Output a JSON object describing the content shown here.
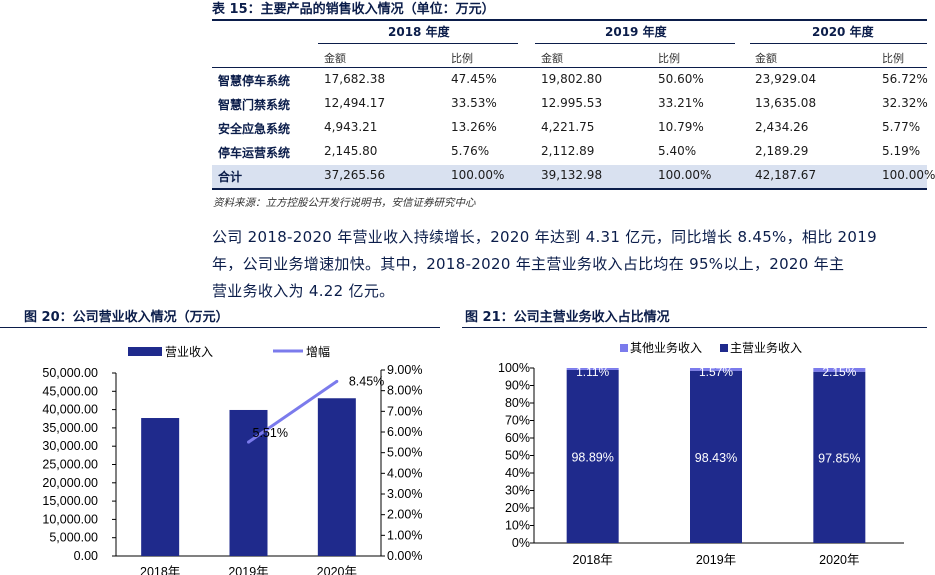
{
  "table": {
    "title": "表 15：主要产品的销售收入情况（单位：万元）",
    "years": [
      "2018 年度",
      "2019 年度",
      "2020 年度"
    ],
    "sub_amount": "金额",
    "sub_ratio": "比例",
    "rows": [
      {
        "label": "智慧停车系统",
        "v": [
          "17,682.38",
          "47.45%",
          "19,802.80",
          "50.60%",
          "23,929.04",
          "56.72%"
        ]
      },
      {
        "label": "智慧门禁系统",
        "v": [
          "12,494.17",
          "33.53%",
          "12.995.53",
          "33.21%",
          "13,635.08",
          "32.32%"
        ]
      },
      {
        "label": "安全应急系统",
        "v": [
          "4,943.21",
          "13.26%",
          "4,221.75",
          "10.79%",
          "2,434.26",
          "5.77%"
        ]
      },
      {
        "label": "停车运营系统",
        "v": [
          "2,145.80",
          "5.76%",
          "2,112.89",
          "5.40%",
          "2,189.29",
          "5.19%"
        ]
      },
      {
        "label": "合计",
        "v": [
          "37,265.56",
          "100.00%",
          "39,132.98",
          "100.00%",
          "42,187.67",
          "100.00%"
        ]
      }
    ],
    "source": "资料来源：立方控股公开发行说明书，安信证券研究中心"
  },
  "paragraph": {
    "line1": "公司 2018-2020 年营业收入持续增长，2020 年达到 4.31 亿元，同比增长 8.45%，相比 2019",
    "line2": "年，公司业务增速加快。其中，2018-2020 年主营业务收入占比均在 95%以上，2020 年主",
    "line3": "营业务收入为 4.22 亿元。"
  },
  "fig20": {
    "title": "图 20：公司营业收入情况（万元）"
  },
  "fig21": {
    "title": "图 21：公司主营业务收入占比情况"
  },
  "chart_data": [
    {
      "type": "bar",
      "title": "",
      "categories": [
        "2018年",
        "2019年",
        "2020年"
      ],
      "series": [
        {
          "name": "营业收入",
          "type": "bar",
          "axis": "left",
          "color": "#1f2a8c",
          "values": [
            37700,
            39900,
            43100
          ]
        },
        {
          "name": "增幅",
          "type": "line",
          "axis": "right",
          "color": "#7b7bec",
          "values": [
            null,
            5.51,
            8.45
          ],
          "labels": [
            "",
            "5.51%",
            "8.45%"
          ]
        }
      ],
      "y_left": {
        "ticks": [
          "0.00",
          "5,000.00",
          "10,000.00",
          "15,000.00",
          "20,000.00",
          "25,000.00",
          "30,000.00",
          "35,000.00",
          "40,000.00",
          "45,000.00",
          "50,000.00"
        ],
        "ylim": [
          0,
          50000
        ]
      },
      "y_right": {
        "ticks": [
          "0.00%",
          "1.00%",
          "2.00%",
          "3.00%",
          "4.00%",
          "5.00%",
          "6.00%",
          "7.00%",
          "8.00%",
          "9.00%"
        ],
        "ylim": [
          0,
          9
        ]
      },
      "legend_placement": "top"
    },
    {
      "type": "bar",
      "stacked": true,
      "title": "",
      "categories": [
        "2018年",
        "2019年",
        "2020年"
      ],
      "series": [
        {
          "name": "主营业务收入",
          "color": "#1f2a8c",
          "values": [
            98.89,
            98.43,
            97.85
          ],
          "labels": [
            "98.89%",
            "98.43%",
            "97.85%"
          ]
        },
        {
          "name": "其他业务收入",
          "color": "#7b7bec",
          "values": [
            1.11,
            1.57,
            2.15
          ],
          "labels": [
            "1.11%",
            "1.57%",
            "2.15%"
          ]
        }
      ],
      "y": {
        "ticks": [
          "0%",
          "10%",
          "20%",
          "30%",
          "40%",
          "50%",
          "60%",
          "70%",
          "80%",
          "90%",
          "100%"
        ],
        "ylim": [
          0,
          100
        ]
      },
      "legend_order": [
        "其他业务收入",
        "主营业务收入"
      ],
      "legend_placement": "top"
    }
  ]
}
